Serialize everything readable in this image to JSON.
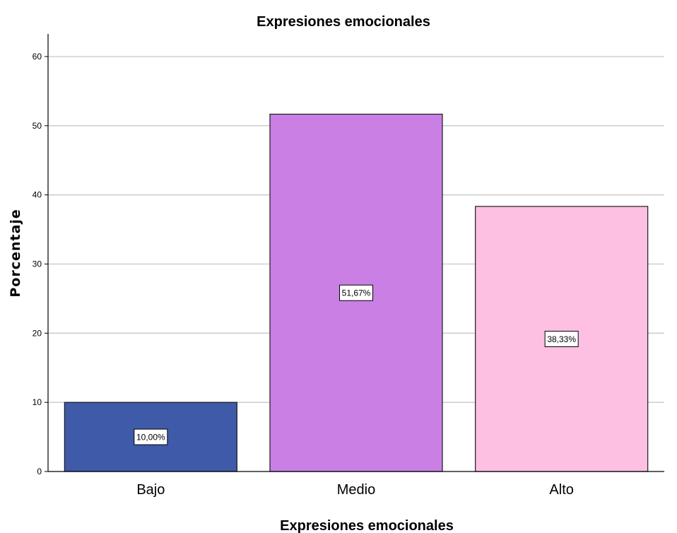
{
  "chart_data": {
    "type": "bar",
    "title": "Expresiones emocionales",
    "xlabel": "Expresiones emocionales",
    "ylabel": "Porcentaje",
    "categories": [
      "Bajo",
      "Medio",
      "Alto"
    ],
    "values": [
      10.0,
      51.67,
      38.33
    ],
    "data_labels": [
      "10,00%",
      "51,67%",
      "38,33%"
    ],
    "colors": [
      "#3F5AA8",
      "#CA7FE5",
      "#FDC0E2"
    ],
    "ylim": [
      0,
      63
    ],
    "yticks": [
      0,
      10,
      20,
      30,
      40,
      50,
      60
    ],
    "grid": true,
    "legend": "none"
  }
}
